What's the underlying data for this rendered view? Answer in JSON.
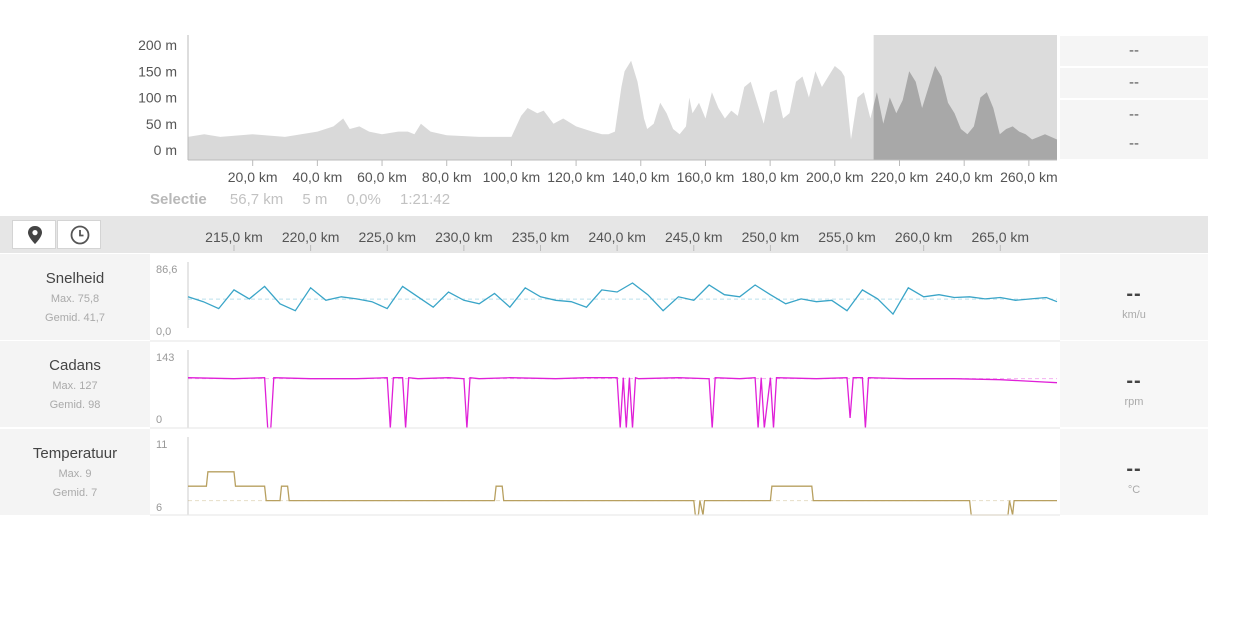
{
  "elevation_panel": {
    "right_values": [
      "--",
      "--",
      "--",
      "--"
    ]
  },
  "selection": {
    "label": "Selectie",
    "distance": "56,7 km",
    "elevation": "5 m",
    "grade": "0,0%",
    "duration": "1:21:42"
  },
  "toolbar": {
    "location_button": "map-pin-icon",
    "time_button": "clock-icon"
  },
  "rows": [
    {
      "name": "Snelheid",
      "max": "Max. 75,8",
      "avg": "Gemid. 41,7",
      "current": "--",
      "unit": "km/u",
      "ymax_label": "86,6",
      "ymin_label": "0,0"
    },
    {
      "name": "Cadans",
      "max": "Max. 127",
      "avg": "Gemid. 98",
      "current": "--",
      "unit": "rpm",
      "ymax_label": "143",
      "ymin_label": "0"
    },
    {
      "name": "Temperatuur",
      "max": "Max. 9",
      "avg": "Gemid. 7",
      "current": "--",
      "unit": "°C",
      "ymax_label": "11",
      "ymin_label": "6"
    }
  ],
  "colors": {
    "speed": "#3aa5c8",
    "cadence": "#e020d8",
    "temperature": "#b8a060",
    "elevation_fill": "#d9d9d9",
    "selection_fill": "#a8a8a8",
    "selection_bg": "#dcdcdc"
  },
  "chart_data": [
    {
      "type": "area",
      "title": "",
      "xlabel": "",
      "ylabel": "",
      "xlim": [
        0,
        268.7
      ],
      "ylim": [
        0,
        200
      ],
      "xticks": [
        20,
        40,
        60,
        80,
        100,
        120,
        140,
        160,
        180,
        200,
        220,
        240,
        260
      ],
      "xtick_labels": [
        "20,0 km",
        "40,0 km",
        "60,0 km",
        "80,0 km",
        "100,0 km",
        "120,0 km",
        "140,0 km",
        "160,0 km",
        "180,0 km",
        "200,0 km",
        "220,0 km",
        "240,0 km",
        "260,0 km"
      ],
      "yticks": [
        0,
        50,
        100,
        150,
        200
      ],
      "ytick_labels": [
        "0 m",
        "50 m",
        "100 m",
        "150 m",
        "200 m"
      ],
      "selection": [
        212,
        268.7
      ],
      "series": [
        {
          "x": [
            0,
            5,
            10,
            20,
            30,
            40,
            45,
            48,
            50,
            53,
            56,
            60,
            65,
            70,
            68,
            72,
            75,
            80,
            90,
            100,
            103,
            105,
            108,
            110,
            113,
            116,
            120,
            125,
            128,
            130,
            132,
            134,
            135,
            137,
            139,
            141,
            142,
            144,
            146,
            148,
            150,
            152,
            154,
            155,
            156,
            158,
            160,
            162,
            164,
            166,
            168,
            170,
            172,
            174,
            176,
            178,
            180,
            182,
            184,
            186,
            188,
            190,
            192,
            194,
            196,
            198,
            200,
            202,
            203,
            205,
            207,
            209,
            211,
            213,
            215,
            217,
            219,
            221,
            223,
            225,
            227,
            229,
            231,
            233,
            235,
            237,
            239,
            241,
            243,
            245,
            247,
            249,
            251,
            253,
            255,
            257,
            259,
            261,
            263,
            265,
            268.7
          ],
          "y": [
            25,
            30,
            25,
            30,
            25,
            35,
            45,
            60,
            40,
            45,
            35,
            30,
            35,
            30,
            35,
            50,
            35,
            28,
            25,
            25,
            65,
            80,
            70,
            75,
            50,
            60,
            45,
            35,
            30,
            30,
            35,
            120,
            150,
            170,
            130,
            60,
            40,
            50,
            90,
            70,
            40,
            30,
            45,
            100,
            70,
            90,
            60,
            110,
            80,
            60,
            75,
            65,
            120,
            130,
            90,
            50,
            110,
            115,
            60,
            70,
            130,
            140,
            100,
            150,
            120,
            140,
            160,
            150,
            140,
            20,
            100,
            110,
            60,
            110,
            50,
            100,
            70,
            95,
            150,
            130,
            80,
            120,
            160,
            140,
            90,
            70,
            40,
            30,
            45,
            100,
            110,
            80,
            30,
            40,
            45,
            35,
            30,
            20,
            25,
            30,
            20
          ]
        }
      ]
    },
    {
      "type": "line",
      "title": "",
      "xlabel": "",
      "ylabel": "",
      "xlim": [
        212,
        268.7
      ],
      "ylim": [
        0,
        86.6
      ],
      "xticks": [
        215,
        220,
        225,
        230,
        235,
        240,
        245,
        250,
        255,
        260,
        265
      ],
      "xtick_labels": [
        "215,0 km",
        "220,0 km",
        "225,0 km",
        "230,0 km",
        "235,0 km",
        "240,0 km",
        "245,0 km",
        "250,0 km",
        "255,0 km",
        "260,0 km",
        "265,0 km"
      ],
      "series": [
        {
          "name": "Snelheid",
          "x": [
            212,
            213,
            214,
            215,
            216,
            217,
            218,
            219,
            220,
            221,
            222,
            223,
            224,
            225,
            226,
            227,
            228,
            229,
            230,
            231,
            232,
            233,
            234,
            235,
            236,
            237,
            238,
            239,
            240,
            241,
            242,
            243,
            244,
            245,
            246,
            247,
            248,
            249,
            250,
            251,
            252,
            253,
            254,
            255,
            256,
            257,
            258,
            259,
            260,
            261,
            262,
            263,
            264,
            265,
            266,
            267,
            268,
            268.7
          ],
          "y": [
            45,
            38,
            28,
            55,
            42,
            60,
            35,
            25,
            58,
            40,
            45,
            42,
            38,
            28,
            60,
            45,
            30,
            52,
            40,
            35,
            50,
            30,
            58,
            45,
            40,
            38,
            30,
            55,
            52,
            65,
            48,
            25,
            45,
            40,
            62,
            48,
            45,
            62,
            48,
            35,
            42,
            38,
            40,
            25,
            55,
            42,
            20,
            58,
            45,
            48,
            44,
            45,
            42,
            44,
            40,
            42,
            44,
            38
          ]
        }
      ]
    },
    {
      "type": "line",
      "title": "",
      "xlabel": "",
      "ylabel": "",
      "xlim": [
        212,
        268.7
      ],
      "ylim": [
        0,
        143
      ],
      "series": [
        {
          "name": "Cadans",
          "x": [
            212,
            215,
            217,
            217.2,
            217.4,
            217.6,
            220,
            223,
            225,
            225.2,
            225.4,
            226,
            226.2,
            226.4,
            227,
            229,
            230,
            230.2,
            230.4,
            231,
            233,
            236,
            238,
            240,
            240.2,
            240.4,
            240.6,
            240.8,
            241,
            241.2,
            241.4,
            244,
            246,
            246.2,
            246.4,
            248,
            249,
            249.2,
            249.4,
            249.6,
            250,
            250.2,
            250.4,
            253,
            255,
            255.2,
            255.4,
            256,
            256.2,
            256.4,
            259,
            262,
            265,
            268.7
          ],
          "y": [
            100,
            98,
            100,
            0,
            0,
            100,
            98,
            98,
            100,
            0,
            100,
            100,
            0,
            100,
            98,
            100,
            98,
            0,
            100,
            98,
            100,
            98,
            100,
            100,
            0,
            100,
            0,
            100,
            0,
            100,
            98,
            100,
            98,
            0,
            100,
            98,
            100,
            0,
            100,
            0,
            100,
            0,
            100,
            98,
            100,
            20,
            100,
            100,
            0,
            100,
            98,
            98,
            96,
            90
          ]
        }
      ]
    },
    {
      "type": "line",
      "title": "",
      "xlabel": "",
      "ylabel": "",
      "xlim": [
        212,
        268.7
      ],
      "ylim": [
        6,
        11
      ],
      "series": [
        {
          "name": "Temperatuur",
          "x": [
            212,
            213.2,
            213.3,
            215,
            215.1,
            217,
            217.1,
            218,
            218.1,
            218.5,
            218.6,
            232,
            232.1,
            232.5,
            232.6,
            245,
            245.1,
            245.3,
            245.4,
            245.6,
            245.7,
            250,
            250.1,
            252.7,
            252.8,
            263,
            263.1,
            265.5,
            265.6,
            265.8,
            265.9,
            268.7
          ],
          "y": [
            8,
            8,
            9,
            9,
            8,
            8,
            7,
            7,
            8,
            8,
            7,
            7,
            8,
            8,
            7,
            7,
            6,
            6,
            7,
            6,
            7,
            7,
            8,
            8,
            7,
            7,
            6,
            6,
            7,
            6,
            7,
            7
          ]
        }
      ]
    }
  ]
}
